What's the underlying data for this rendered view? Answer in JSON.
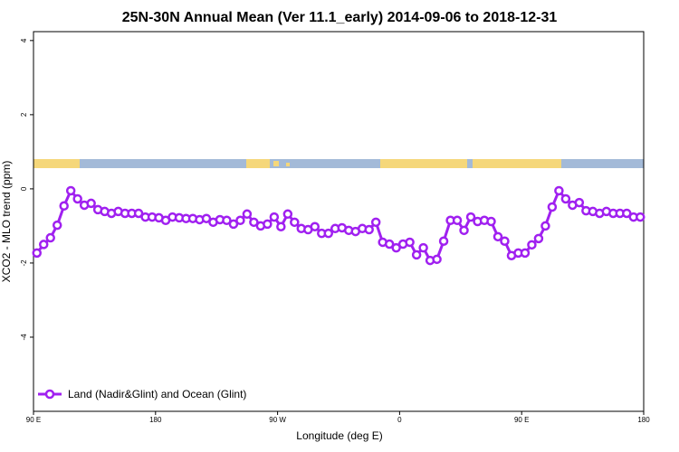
{
  "chart_data": {
    "type": "line",
    "title": "25N-30N Annual Mean (Ver 11.1_early)   2014-09-06 to 2018-12-31",
    "x_label": "Longitude (deg E)",
    "y_label": "XCO2 - MLO trend (ppm)",
    "xlim": [
      90,
      540
    ],
    "ylim": [
      -6,
      4.24
    ],
    "xticks": [
      {
        "value": 90,
        "label": "90 E"
      },
      180,
      {
        "value": 270,
        "label": "90 W"
      },
      {
        "value": 360,
        "label": "0"
      },
      {
        "value": 450,
        "label": "90 E"
      },
      {
        "value": 540,
        "label": "180"
      }
    ],
    "yticks": [
      4,
      2,
      0,
      -2,
      -4
    ],
    "legend": "bottom-left",
    "x": [
      92.5,
      97.5,
      102.5,
      107.5,
      112.5,
      117.5,
      122.5,
      127.5,
      132.5,
      137.5,
      142.5,
      147.5,
      152.5,
      157.5,
      162.5,
      167.5,
      172.5,
      177.5,
      182.5,
      187.5,
      192.5,
      197.5,
      202.5,
      207.5,
      212.5,
      217.5,
      222.5,
      227.5,
      232.5,
      237.5,
      242.5,
      247.5,
      252.5,
      257.5,
      262.5,
      267.5,
      272.5,
      277.5,
      282.5,
      287.5,
      292.5,
      297.5,
      302.5,
      307.5,
      312.5,
      317.5,
      322.5,
      327.5,
      332.5,
      337.5,
      342.5,
      347.5,
      352.5,
      357.5,
      362.5,
      367.5,
      372.5,
      377.5,
      382.5,
      387.5,
      392.5,
      397.5,
      402.5,
      407.5,
      412.5,
      417.5,
      422.5,
      427.5,
      432.5,
      437.5,
      442.5,
      447.5,
      452.5,
      457.5,
      462.5,
      467.5,
      472.5,
      477.5,
      482.5,
      487.5,
      492.5,
      497.5,
      502.5,
      507.5,
      512.5,
      517.5,
      522.5,
      527.5,
      532.5,
      537.5
    ],
    "series": [
      {
        "name": "Land (Nadir&Glint) and Ocean (Glint)",
        "color": "#a020f0",
        "values": [
          -1.73,
          -1.5,
          -1.32,
          -0.98,
          -0.46,
          -0.05,
          -0.27,
          -0.44,
          -0.39,
          -0.56,
          -0.61,
          -0.66,
          -0.61,
          -0.66,
          -0.66,
          -0.66,
          -0.76,
          -0.76,
          -0.78,
          -0.85,
          -0.76,
          -0.78,
          -0.8,
          -0.8,
          -0.83,
          -0.8,
          -0.9,
          -0.83,
          -0.85,
          -0.95,
          -0.85,
          -0.68,
          -0.9,
          -1.0,
          -0.95,
          -0.76,
          -1.02,
          -0.68,
          -0.9,
          -1.07,
          -1.1,
          -1.02,
          -1.2,
          -1.2,
          -1.07,
          -1.05,
          -1.12,
          -1.15,
          -1.07,
          -1.1,
          -0.9,
          -1.44,
          -1.49,
          -1.59,
          -1.49,
          -1.44,
          -1.78,
          -1.59,
          -1.93,
          -1.9,
          -1.41,
          -0.85,
          -0.85,
          -1.12,
          -0.76,
          -0.88,
          -0.85,
          -0.88,
          -1.29,
          -1.41,
          -1.8,
          -1.73,
          -1.73,
          -1.51,
          -1.34,
          -1.0,
          -0.49,
          -0.05,
          -0.27,
          -0.44,
          -0.37,
          -0.59,
          -0.61,
          -0.66,
          -0.61,
          -0.66,
          -0.66,
          -0.66,
          -0.76,
          -0.76
        ]
      }
    ]
  }
}
